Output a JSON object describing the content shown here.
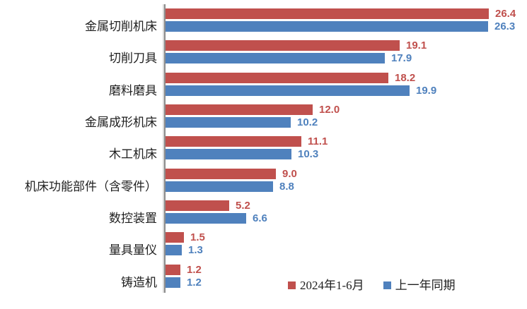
{
  "chart_data": {
    "type": "bar",
    "orientation": "horizontal",
    "title": "",
    "xlabel": "",
    "ylabel": "",
    "xlim": [
      0,
      29.5
    ],
    "grid": false,
    "legend_position": "bottom",
    "value_labels": true,
    "categories": [
      "金属切削机床",
      "切削刀具",
      "磨料磨具",
      "金属成形机床",
      "木工机床",
      "机床功能部件（含零件）",
      "数控装置",
      "量具量仪",
      "铸造机"
    ],
    "series": [
      {
        "name": "2024年1-6月",
        "color": "#C0504D",
        "values": [
          26.4,
          19.1,
          18.2,
          12.0,
          11.1,
          9.0,
          5.2,
          1.5,
          1.2
        ]
      },
      {
        "name": "上一年同期",
        "color": "#4F81BD",
        "values": [
          26.3,
          17.9,
          19.9,
          10.2,
          10.3,
          8.8,
          6.6,
          1.3,
          1.2
        ]
      }
    ]
  },
  "colors": {
    "series_2024": "#C0504D",
    "series_prev_year": "#4F81BD",
    "axis_line": "#8C8C8C",
    "background": "#FFFFFF",
    "label_text": "#1F1F1F"
  }
}
